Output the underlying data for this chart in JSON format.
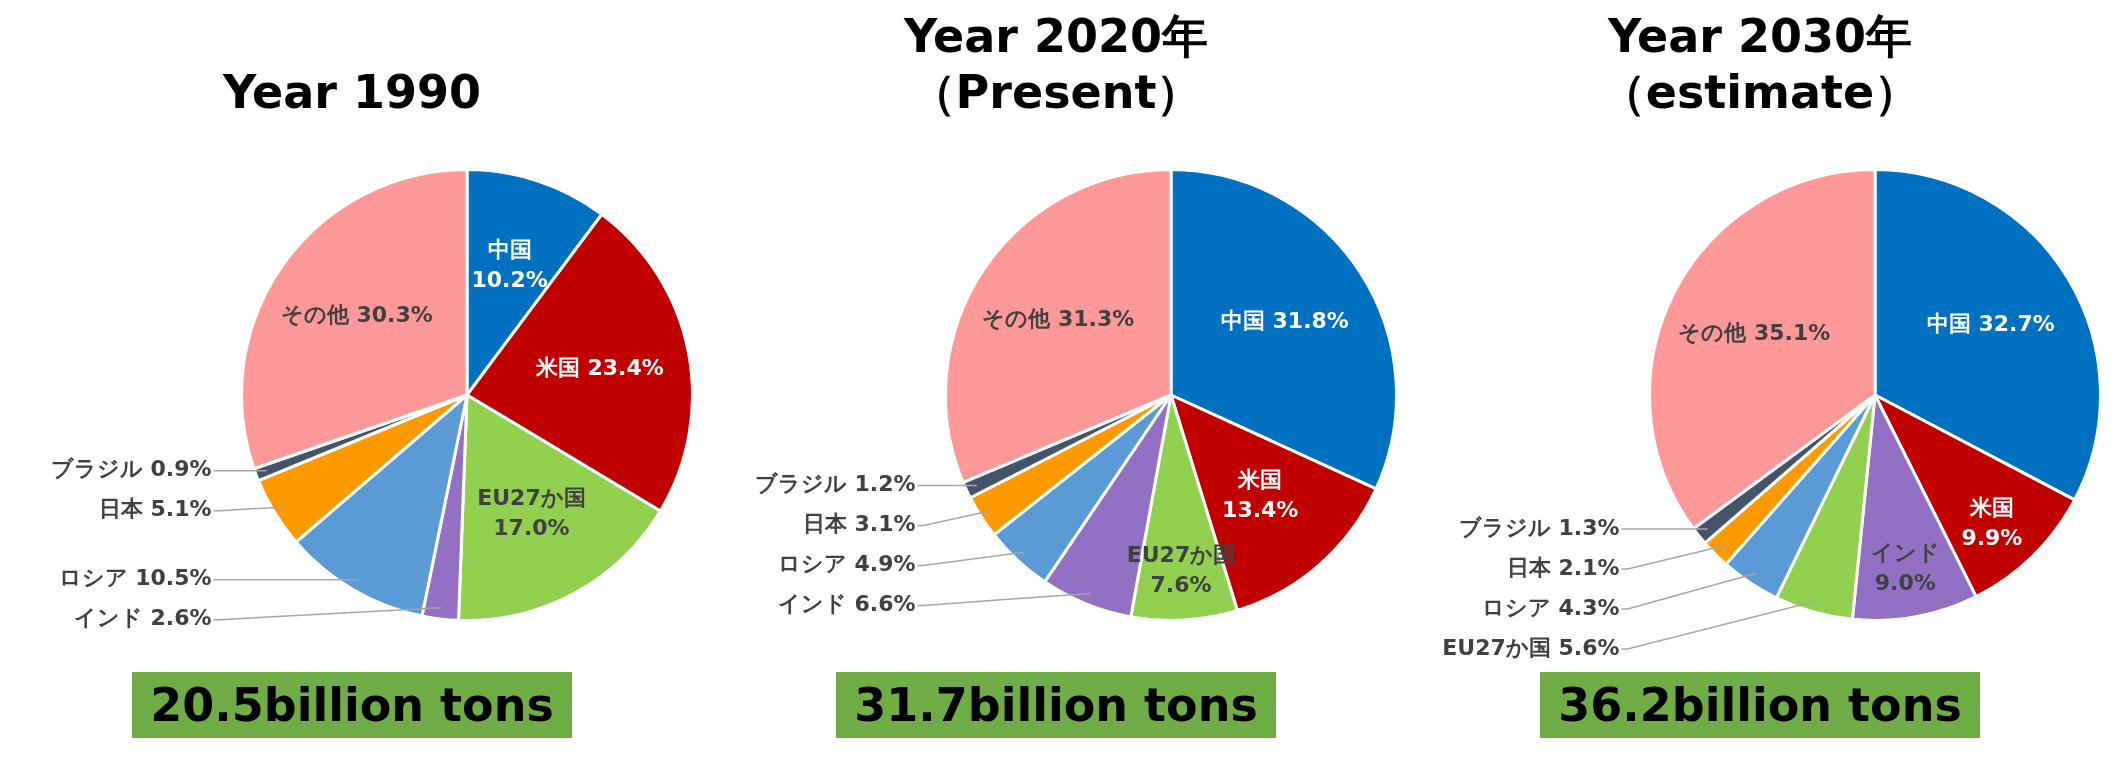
{
  "chart_data": [
    {
      "type": "pie",
      "title": "Year 1990",
      "categories": [
        "中国",
        "米国",
        "EU27か国",
        "インド",
        "ロシア",
        "日本",
        "ブラジル",
        "その他"
      ],
      "values": [
        10.2,
        23.4,
        17.0,
        2.6,
        10.5,
        5.1,
        0.9,
        30.3
      ],
      "value_labels": [
        "10.2%",
        "23.4%",
        "17.0%",
        "2.6%",
        "10.5%",
        "5.1%",
        "0.9%",
        "30.3%"
      ],
      "colors": [
        "#0070c0",
        "#c00000",
        "#92d050",
        "#9470c4",
        "#5b9bd5",
        "#ff9900",
        "#44546a",
        "#ff9999"
      ],
      "annotations": [
        "20.5billion tons"
      ]
    },
    {
      "type": "pie",
      "title": "Year 2020年（Present）",
      "categories": [
        "中国",
        "米国",
        "EU27か国",
        "インド",
        "ロシア",
        "日本",
        "ブラジル",
        "その他"
      ],
      "values": [
        31.8,
        13.4,
        7.6,
        6.6,
        4.9,
        3.1,
        1.2,
        31.3
      ],
      "value_labels": [
        "31.8%",
        "13.4%",
        "7.6%",
        "6.6%",
        "4.9%",
        "3.1%",
        "1.2%",
        "31.3%"
      ],
      "colors": [
        "#0070c0",
        "#c00000",
        "#92d050",
        "#9470c4",
        "#5b9bd5",
        "#ff9900",
        "#44546a",
        "#ff9999"
      ],
      "annotations": [
        "31.7billion tons"
      ]
    },
    {
      "type": "pie",
      "title": "Year 2030年（estimate）",
      "categories": [
        "中国",
        "米国",
        "インド",
        "EU27か国",
        "ロシア",
        "日本",
        "ブラジル",
        "その他"
      ],
      "values": [
        32.7,
        9.9,
        9.0,
        5.6,
        4.3,
        2.1,
        1.3,
        35.1
      ],
      "value_labels": [
        "32.7%",
        "9.9%",
        "9.0%",
        "5.6%",
        "4.3%",
        "2.1%",
        "1.3%",
        "35.1%"
      ],
      "colors": [
        "#0070c0",
        "#c00000",
        "#9470c4",
        "#92d050",
        "#5b9bd5",
        "#ff9900",
        "#44546a",
        "#ff9999"
      ],
      "annotations": [
        "36.2billion tons"
      ]
    }
  ]
}
